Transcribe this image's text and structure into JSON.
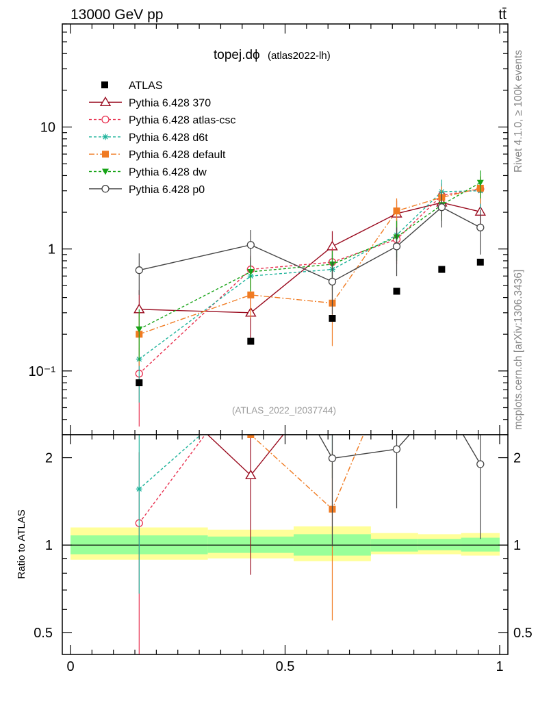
{
  "header": {
    "left": "13000 GeV pp",
    "right": "tt̄"
  },
  "side_labels": {
    "rivet": "Rivet 4.1.0, ≥ 100k events",
    "mcplots": "mcplots.cern.ch [arXiv:1306.3436]"
  },
  "plot_title": {
    "main": "topej.dϕ",
    "sub": "(atlas2022-lh)"
  },
  "watermark": "(ATLAS_2022_I2037744)",
  "chart_data": {
    "type": "scatter",
    "x_range": [
      0,
      1
    ],
    "x_ticks": [
      "0",
      "0.5",
      "1"
    ],
    "main": {
      "yscale": "log",
      "ylim": [
        0.03,
        70
      ],
      "y_ticks": [
        {
          "value": 10,
          "label": "10"
        },
        {
          "value": 1,
          "label": "1"
        },
        {
          "value": 0.1,
          "label": "10⁻¹"
        }
      ]
    },
    "ratio": {
      "ylabel": "Ratio to ATLAS",
      "ylim": [
        0.42,
        2.4
      ],
      "y_ticks": [
        {
          "value": 2,
          "label": "2"
        },
        {
          "value": 1,
          "label": "1"
        },
        {
          "value": 0.5,
          "label": "0.5"
        }
      ]
    },
    "atlas": {
      "name": "ATLAS",
      "x": [
        0.16,
        0.42,
        0.61,
        0.76,
        0.865,
        0.955
      ],
      "y": [
        0.08,
        0.175,
        0.27,
        0.45,
        0.68,
        0.78
      ]
    },
    "ratio_bands": [
      {
        "x0": 0.0,
        "x1": 0.32,
        "inner": [
          0.93,
          1.08
        ],
        "outer": [
          0.89,
          1.15
        ]
      },
      {
        "x0": 0.32,
        "x1": 0.52,
        "inner": [
          0.94,
          1.07
        ],
        "outer": [
          0.9,
          1.13
        ]
      },
      {
        "x0": 0.52,
        "x1": 0.7,
        "inner": [
          0.92,
          1.09
        ],
        "outer": [
          0.88,
          1.16
        ]
      },
      {
        "x0": 0.7,
        "x1": 0.81,
        "inner": [
          0.95,
          1.05
        ],
        "outer": [
          0.93,
          1.1
        ]
      },
      {
        "x0": 0.81,
        "x1": 0.91,
        "inner": [
          0.96,
          1.05
        ],
        "outer": [
          0.93,
          1.09
        ]
      },
      {
        "x0": 0.91,
        "x1": 1.0,
        "inner": [
          0.95,
          1.06
        ],
        "outer": [
          0.92,
          1.1
        ]
      }
    ],
    "series": [
      {
        "name": "Pythia 6.428 370",
        "color": "#990a1e",
        "dash": "",
        "marker": "triangle-open",
        "x": [
          0.16,
          0.42,
          0.61,
          0.76,
          0.865,
          0.955
        ],
        "y": [
          0.32,
          0.3,
          1.05,
          1.95,
          2.4,
          2.02
        ],
        "err": [
          0.14,
          0.12,
          0.35,
          0.55,
          0.55,
          0.6
        ],
        "ratio": [
          4.0,
          1.74,
          3.9,
          4.3,
          3.5,
          2.6
        ],
        "ratio_err": [
          0,
          0.95,
          0,
          0,
          0,
          0
        ]
      },
      {
        "name": "Pythia 6.428 atlas-csc",
        "color": "#e8304f",
        "dash": "4,3",
        "marker": "circle-open",
        "x": [
          0.16,
          0.42,
          0.61,
          0.76,
          0.865,
          0.955
        ],
        "y": [
          0.095,
          0.68,
          0.78,
          1.2,
          2.75,
          3.1
        ],
        "err": [
          0.06,
          0.2,
          0.25,
          0.45,
          0.7,
          0.8
        ],
        "ratio": [
          1.19,
          3.9,
          2.9,
          2.7,
          4.0,
          4.0
        ],
        "ratio_err": [
          0.9,
          0,
          0,
          0,
          0,
          0
        ]
      },
      {
        "name": "Pythia 6.428 d6t",
        "color": "#1eb39b",
        "dash": "4,3",
        "marker": "star",
        "x": [
          0.16,
          0.42,
          0.61,
          0.76,
          0.865,
          0.955
        ],
        "y": [
          0.125,
          0.6,
          0.68,
          1.3,
          2.95,
          3.0
        ],
        "err": [
          0.07,
          0.18,
          0.22,
          0.45,
          0.75,
          0.85
        ],
        "ratio": [
          1.56,
          3.4,
          2.52,
          2.9,
          4.3,
          3.85
        ],
        "ratio_err": [
          0.88,
          0,
          0.82,
          0,
          0,
          0
        ]
      },
      {
        "name": "Pythia 6.428 default",
        "color": "#f07b22",
        "dash": "8,3,2,3",
        "marker": "square",
        "x": [
          0.16,
          0.42,
          0.61,
          0.76,
          0.865,
          0.955
        ],
        "y": [
          0.2,
          0.42,
          0.36,
          2.05,
          2.65,
          3.15
        ],
        "err": [
          0.09,
          0.15,
          0.2,
          0.55,
          0.6,
          0.8
        ],
        "ratio": [
          2.5,
          2.4,
          1.33,
          4.5,
          3.9,
          4.0
        ],
        "ratio_err": [
          0,
          0,
          0.78,
          0,
          0,
          0
        ]
      },
      {
        "name": "Pythia 6.428 dw",
        "color": "#16a316",
        "dash": "4,3",
        "marker": "triangle-down",
        "x": [
          0.16,
          0.42,
          0.61,
          0.76,
          0.865,
          0.955
        ],
        "y": [
          0.22,
          0.65,
          0.75,
          1.25,
          2.3,
          3.5
        ],
        "err": [
          0.1,
          0.2,
          0.22,
          0.45,
          0.6,
          0.9
        ],
        "ratio": [
          2.75,
          3.7,
          2.8,
          2.8,
          3.4,
          4.5
        ],
        "ratio_err": [
          0,
          0,
          0,
          0,
          0,
          0
        ]
      },
      {
        "name": "Pythia 6.428 p0",
        "color": "#444444",
        "dash": "",
        "marker": "circle-open",
        "x": [
          0.16,
          0.42,
          0.61,
          0.76,
          0.865,
          0.955
        ],
        "y": [
          0.67,
          1.08,
          0.54,
          1.05,
          2.2,
          1.5
        ],
        "err": [
          0.25,
          0.35,
          0.25,
          0.45,
          0.7,
          0.6
        ],
        "ratio": [
          8.4,
          6.2,
          1.99,
          2.14,
          3.2,
          1.9
        ],
        "ratio_err": [
          0,
          0,
          1.0,
          0.8,
          0,
          0.85
        ]
      }
    ]
  }
}
